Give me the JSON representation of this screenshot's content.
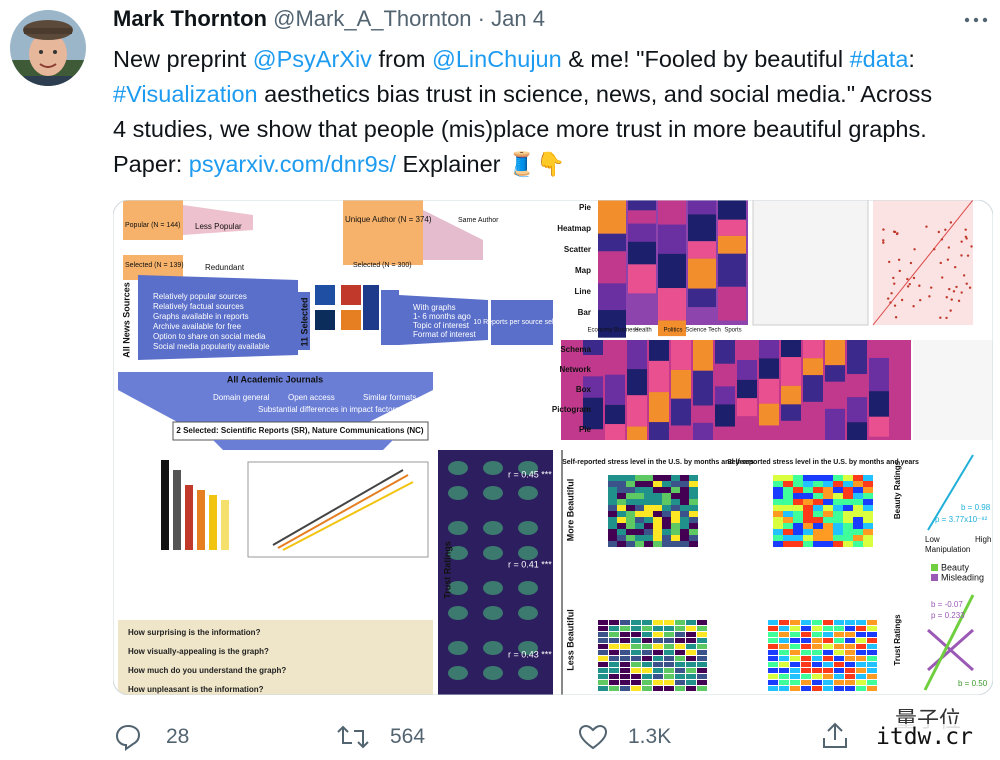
{
  "tweet": {
    "author_name": "Mark Thornton",
    "handle": "@Mark_A_Thornton",
    "separator": "·",
    "date": "Jan 4",
    "text": [
      {
        "text": "New preprint ",
        "link": false
      },
      {
        "text": "@PsyArXiv",
        "link": true
      },
      {
        "text": " from ",
        "link": false
      },
      {
        "text": "@LinChujun",
        "link": true
      },
      {
        "text": " & me! \"Fooled by beautiful ",
        "link": false
      },
      {
        "text": "#data",
        "link": true
      },
      {
        "text": ": ",
        "link": false
      },
      {
        "text": "#Visualization",
        "link": true
      },
      {
        "text": " aesthetics bias trust in science, news, and social media.\" Across 4 studies, we show that people (mis)place more trust in more beautiful graphs. Paper: ",
        "link": false
      },
      {
        "text": "psyarxiv.com/dnr9s/",
        "link": true
      },
      {
        "text": " Explainer 🧵👇",
        "link": false
      }
    ]
  },
  "media": {
    "reddit": {
      "popular": "Popular (N = 144)",
      "less_popular": "Less Popular",
      "selected": "Selected (N = 139)",
      "redundant": "Redundant",
      "unique": "Unique Author (N = 374)",
      "same": "Same Author",
      "selected_unique": "Selected (N = 300)"
    },
    "news_funnel": {
      "source": "All News Sources",
      "selected": "11 Selected",
      "reports": "10 Reports per source selected",
      "criteria": [
        "Relatively popular sources",
        "Relatively factual sources",
        "Graphs available in reports",
        "Archive available for free",
        "Option to share on social media",
        "Social media popularity available"
      ],
      "report_criteria": [
        "With graphs",
        "1- 6 months ago",
        "Topic of interest",
        "Format of interest"
      ]
    },
    "journal_funnel": {
      "title": "All Academic Journals",
      "criteria": [
        "Domain general",
        "Open access",
        "Similar formats",
        "Substantial differences in impact factors"
      ],
      "selected": "2 Selected: Scientific Reports (SR), Nature Communications (NC)"
    },
    "survey_questions": [
      "How surprising is the information?",
      "How visually-appealing is the graph?",
      "How much do you understand the graph?",
      "How unpleasant is the information?"
    ],
    "trust": {
      "label": "Trust Ratings",
      "r": [
        "r = 0.45 ***",
        "r = 0.41 ***",
        "r = 0.43 ***"
      ]
    },
    "chart_types": [
      "Pie",
      "Heatmap",
      "Scatter",
      "Map",
      "Line",
      "Bar"
    ],
    "topics": [
      "Economy Business",
      "Health",
      "Politics",
      "Science Tech",
      "Sports"
    ],
    "chart_types_2": [
      "Schema",
      "Network",
      "Box",
      "Pictogram",
      "Pie"
    ],
    "stress": {
      "title": "Self-reported stress level in the U.S. by months and years",
      "more": "More Beautiful",
      "less": "Less Beautiful"
    },
    "ratings": {
      "beauty": "Beauty Ratings",
      "manipulation": "Manipulation",
      "low": "Low",
      "high": "High",
      "b": "b = 0.98",
      "p": "p = 3.77x10⁻⁸²",
      "legend": [
        "Beauty",
        "Misleading"
      ],
      "trust": "Trust Ratings",
      "b2": "b = -0.07",
      "p2": "p = 0.233",
      "b3": "b = 0.50"
    }
  },
  "actions": {
    "replies": "28",
    "retweets": "564",
    "likes": "1.3K"
  },
  "watermark": {
    "brand": "量子位",
    "site": "itdw.cr"
  }
}
